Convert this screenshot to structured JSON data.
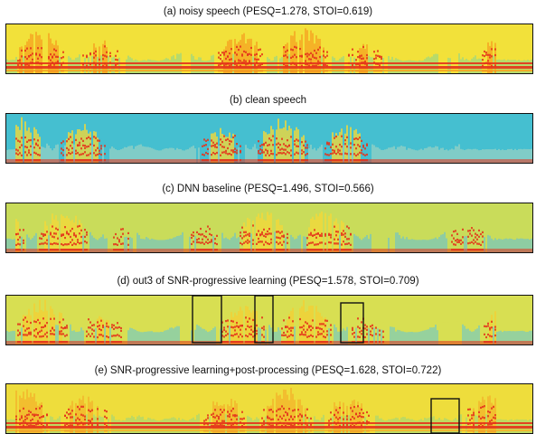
{
  "figure": {
    "panels": [
      {
        "id": "a",
        "caption": "(a) noisy speech (PESQ=1.278, STOI=0.619)",
        "kind": "noisy",
        "highlight_count": 0,
        "colors": {
          "base": "#f2e13a",
          "warm": "#f5a623",
          "hot": "#e4321b",
          "cool": "#a8d878"
        }
      },
      {
        "id": "b",
        "caption": "(b) clean speech",
        "kind": "clean",
        "highlight_count": 0,
        "colors": {
          "base": "#45bfd0",
          "warm": "#f0d83a",
          "hot": "#e4321b",
          "cool": "#8ecfc4"
        }
      },
      {
        "id": "c",
        "caption": "(c) DNN baseline (PESQ=1.496, STOI=0.566)",
        "kind": "baseline",
        "highlight_count": 0,
        "colors": {
          "base": "#c9dc5a",
          "warm": "#f2d83a",
          "hot": "#e4321b",
          "cool": "#7fc8b4"
        }
      },
      {
        "id": "d",
        "caption": "(d) out3 of SNR-progressive learning (PESQ=1.578, STOI=0.709)",
        "kind": "progressive",
        "highlight_count": 3,
        "colors": {
          "base": "#d8df52",
          "warm": "#f2cf36",
          "hot": "#e4321b",
          "cool": "#86cdb0"
        }
      },
      {
        "id": "e",
        "caption": "(e) SNR-progressive learning+post-processing (PESQ=1.628, STOI=0.722)",
        "kind": "postproc",
        "highlight_count": 1,
        "colors": {
          "base": "#eedd3c",
          "warm": "#f3b62c",
          "hot": "#e4321b",
          "cool": "#b3d86a"
        }
      }
    ]
  }
}
